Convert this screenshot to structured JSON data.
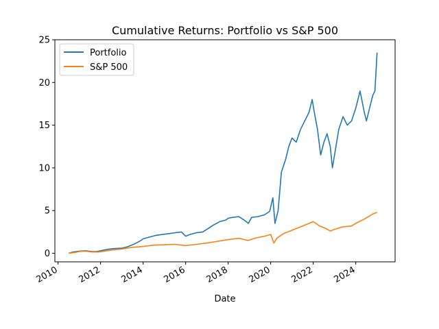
{
  "chart_data": {
    "type": "line",
    "title": "Cumulative Returns: Portfolio vs S&P 500",
    "xlabel": "Date",
    "ylabel": "",
    "xlim": [
      2009.85,
      2025.85
    ],
    "ylim": [
      -1.0,
      25.0
    ],
    "x_ticks": [
      2010,
      2012,
      2014,
      2016,
      2018,
      2020,
      2022,
      2024
    ],
    "x_tick_labels": [
      "2010",
      "2012",
      "2014",
      "2016",
      "2018",
      "2020",
      "2022",
      "2024"
    ],
    "y_ticks": [
      0,
      5,
      10,
      15,
      20,
      25
    ],
    "y_tick_labels": [
      "0",
      "5",
      "10",
      "15",
      "20",
      "25"
    ],
    "grid": false,
    "legend_position": "top-left",
    "series": [
      {
        "name": "Portfolio",
        "color": "#1f77b4",
        "x": [
          2010.5,
          2010.7,
          2011.0,
          2011.3,
          2011.6,
          2011.8,
          2012.0,
          2012.3,
          2012.6,
          2013.0,
          2013.3,
          2013.6,
          2013.9,
          2014.0,
          2014.3,
          2014.6,
          2014.9,
          2015.2,
          2015.5,
          2015.8,
          2016.0,
          2016.2,
          2016.5,
          2016.8,
          2017.0,
          2017.3,
          2017.6,
          2017.9,
          2018.0,
          2018.2,
          2018.5,
          2018.8,
          2018.95,
          2019.1,
          2019.4,
          2019.7,
          2019.95,
          2020.1,
          2020.2,
          2020.35,
          2020.5,
          2020.7,
          2020.85,
          2021.0,
          2021.2,
          2021.4,
          2021.6,
          2021.8,
          2021.95,
          2022.05,
          2022.2,
          2022.35,
          2022.5,
          2022.65,
          2022.8,
          2022.9,
          2023.0,
          2023.2,
          2023.4,
          2023.6,
          2023.8,
          2024.0,
          2024.2,
          2024.4,
          2024.5,
          2024.65,
          2024.8,
          2024.9,
          2025.0
        ],
        "values": [
          0.0,
          0.15,
          0.25,
          0.3,
          0.2,
          0.2,
          0.3,
          0.45,
          0.55,
          0.6,
          0.8,
          1.1,
          1.5,
          1.7,
          1.9,
          2.1,
          2.2,
          2.3,
          2.4,
          2.5,
          2.0,
          2.2,
          2.4,
          2.5,
          2.8,
          3.3,
          3.7,
          3.9,
          4.1,
          4.2,
          4.3,
          3.8,
          3.5,
          4.2,
          4.3,
          4.5,
          4.9,
          6.5,
          3.5,
          5.0,
          9.5,
          11.0,
          12.5,
          13.5,
          13.0,
          14.5,
          15.5,
          16.5,
          18.0,
          16.5,
          14.5,
          11.5,
          13.0,
          14.0,
          12.5,
          10.0,
          11.5,
          14.5,
          16.0,
          15.0,
          15.5,
          17.0,
          19.0,
          16.5,
          15.5,
          17.0,
          18.5,
          19.0,
          23.5
        ]
      },
      {
        "name": "S&P 500",
        "color": "#ff7f0e",
        "x": [
          2010.5,
          2010.8,
          2011.0,
          2011.3,
          2011.6,
          2011.9,
          2012.3,
          2012.6,
          2013.0,
          2013.5,
          2014.0,
          2014.5,
          2015.0,
          2015.5,
          2016.0,
          2016.5,
          2017.0,
          2017.5,
          2018.0,
          2018.5,
          2018.95,
          2019.3,
          2019.7,
          2020.0,
          2020.15,
          2020.3,
          2020.6,
          2021.0,
          2021.5,
          2022.0,
          2022.3,
          2022.6,
          2022.8,
          2023.0,
          2023.4,
          2023.8,
          2024.0,
          2024.4,
          2024.8,
          2025.0
        ],
        "values": [
          0.0,
          0.1,
          0.2,
          0.25,
          0.15,
          0.15,
          0.3,
          0.4,
          0.5,
          0.7,
          0.8,
          0.95,
          1.0,
          1.05,
          0.9,
          1.05,
          1.2,
          1.4,
          1.6,
          1.75,
          1.5,
          1.8,
          2.0,
          2.2,
          1.2,
          1.8,
          2.3,
          2.7,
          3.2,
          3.7,
          3.2,
          2.9,
          2.6,
          2.8,
          3.1,
          3.2,
          3.5,
          4.0,
          4.6,
          4.8
        ]
      }
    ]
  }
}
